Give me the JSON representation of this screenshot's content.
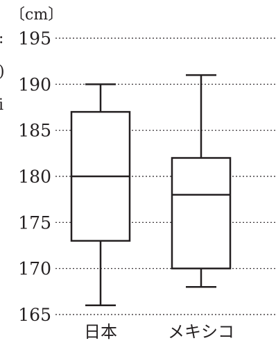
{
  "chart_data": {
    "type": "boxplot",
    "unit_label": "〔cm〕",
    "ylim": [
      165,
      195
    ],
    "yticks": [
      165,
      170,
      175,
      180,
      185,
      190,
      195
    ],
    "grid": "horizontal-dotted",
    "categories": [
      "日本",
      "メキシコ"
    ],
    "boxes": [
      {
        "category": "日本",
        "min": 166,
        "q1": 173,
        "median": 180,
        "q3": 187,
        "max": 190
      },
      {
        "category": "メキシコ",
        "min": 168,
        "q1": 170,
        "median": 178,
        "q3": 182,
        "max": 191
      }
    ],
    "edge_fragments": [
      ":",
      ")",
      "i"
    ]
  },
  "colors": {
    "ink": "#231f20",
    "background": "#ffffff"
  }
}
